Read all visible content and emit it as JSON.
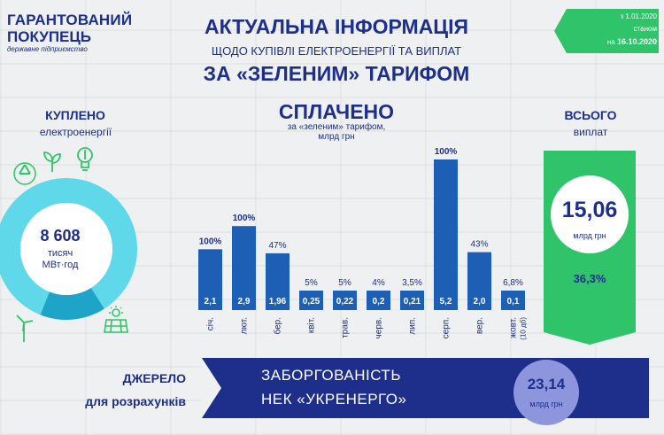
{
  "logo": {
    "line1": "ГАРАНТОВАНИЙ",
    "line2": "ПОКУПЕЦЬ",
    "line3": "державне підприємство"
  },
  "header": {
    "title1": "АКТУАЛЬНА ІНФОРМАЦІЯ",
    "title2": "ЩОДО КУПІВЛІ ЕЛЕКТРОЕНЕРГІЇ ТА ВИПЛАТ",
    "title3": "ЗА «ЗЕЛЕНИМ» ТАРИФОМ"
  },
  "dates": {
    "from": "з 1.01.2020",
    "state": "станом",
    "on": "на",
    "date": "16.10.2020"
  },
  "bought": {
    "label": "КУПЛЕНО",
    "sublabel": "електроенергії",
    "value": "8 608",
    "unit1": "тисяч",
    "unit2": "МВт·год"
  },
  "paid": {
    "label": "СПЛАЧЕНО",
    "sublabel1": "за «зеленим» тарифом,",
    "sublabel2": "млрд грн"
  },
  "total": {
    "label": "ВСЬОГО",
    "sublabel": "виплат",
    "value": "15,06",
    "unit": "млрд грн",
    "percent": "36,3%"
  },
  "source": {
    "line1": "ДЖЕРЕЛО",
    "line2": "для розрахунків"
  },
  "debt": {
    "line1": "ЗАБОРГОВАНІСТЬ",
    "line2": "НЕК «УКРЕНЕРГО»",
    "value": "23,14",
    "unit": "млрд грн"
  },
  "colors": {
    "navy": "#1d2f8a",
    "bar": "#1d5fb4",
    "green": "#2fc46a",
    "cyan": "#5fd9ea",
    "circle": "#8d96dd",
    "donutDark": "#1ea4c8"
  },
  "icons": [
    "recycle-icon",
    "plant-icon",
    "bulb-icon",
    "wind-turbine-icon",
    "solar-panel-icon",
    "sun-icon"
  ],
  "chart_data": {
    "type": "bar",
    "categories": [
      "січ.",
      "лют.",
      "бер.",
      "квіт.",
      "трав.",
      "черв.",
      "лип.",
      "серп.",
      "вер.",
      "жовт."
    ],
    "category_note": "(10 дб)",
    "values": [
      2.1,
      2.9,
      1.96,
      0.25,
      0.22,
      0.2,
      0.21,
      5.2,
      2.0,
      0.1
    ],
    "value_labels": [
      "2,1",
      "2,9",
      "1,96",
      "0,25",
      "0,22",
      "0,2",
      "0,21",
      "5,2",
      "2,0",
      "0,1"
    ],
    "percent_labels": [
      "100%",
      "100%",
      "47%",
      "5%",
      "5%",
      "4%",
      "3,5%",
      "100%",
      "43%",
      "6,8%"
    ],
    "title": "СПЛАЧЕНО",
    "ylabel": "млрд грн",
    "ylim": [
      0,
      5.2
    ]
  },
  "donut": {
    "type": "pie",
    "values": [
      85,
      15
    ]
  }
}
